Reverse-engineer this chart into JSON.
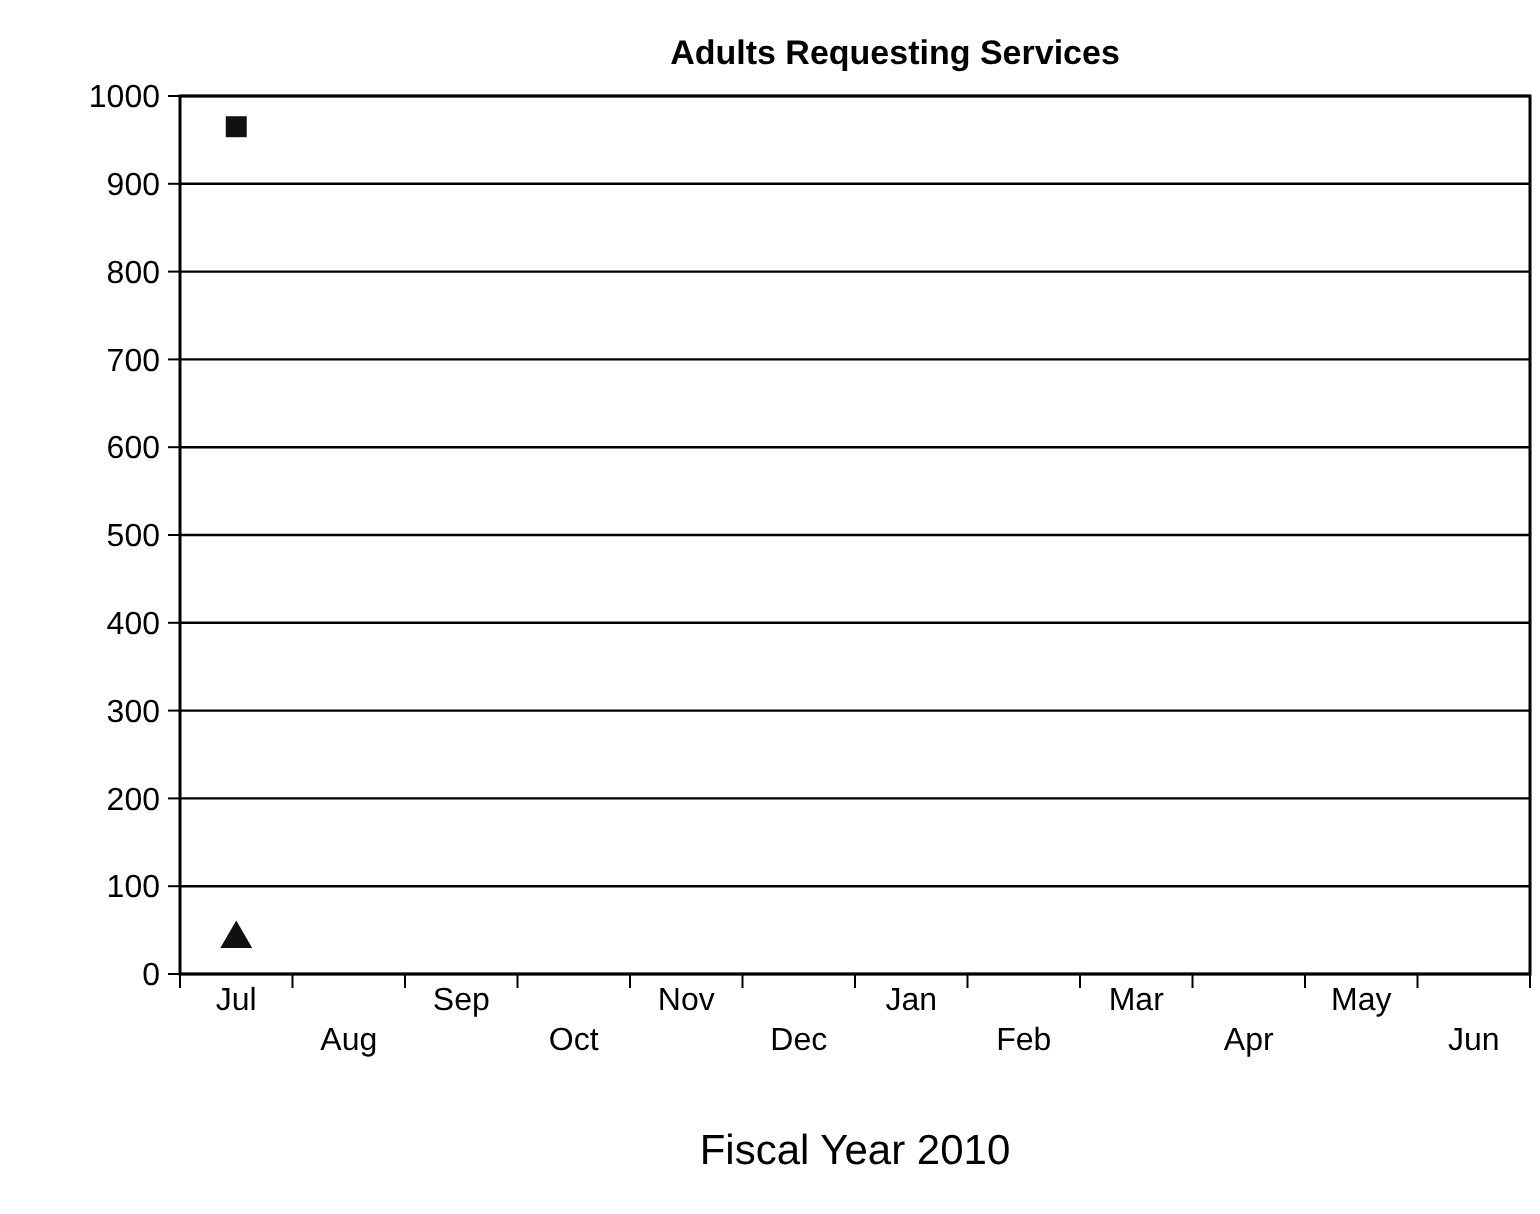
{
  "chart_data": {
    "type": "scatter",
    "title": "Adults Requesting Services",
    "xlabel": "Fiscal Year 2010",
    "categories": [
      "Jul",
      "Aug",
      "Sep",
      "Oct",
      "Nov",
      "Dec",
      "Jan",
      "Feb",
      "Mar",
      "Apr",
      "May",
      "Jun"
    ],
    "series": [
      {
        "color": "#111111",
        "marker": "square",
        "values": [
          965,
          null,
          null,
          null,
          null,
          null,
          null,
          null,
          null,
          null,
          null,
          null
        ]
      },
      {
        "color": "#111111",
        "marker": "triangle",
        "values": [
          40,
          null,
          null,
          null,
          null,
          null,
          null,
          null,
          null,
          null,
          null,
          null
        ]
      }
    ],
    "ylim": [
      0,
      1000
    ],
    "yticks": [
      0,
      100,
      200,
      300,
      400,
      500,
      600,
      700,
      800,
      900,
      1000
    ],
    "grid": "y"
  }
}
